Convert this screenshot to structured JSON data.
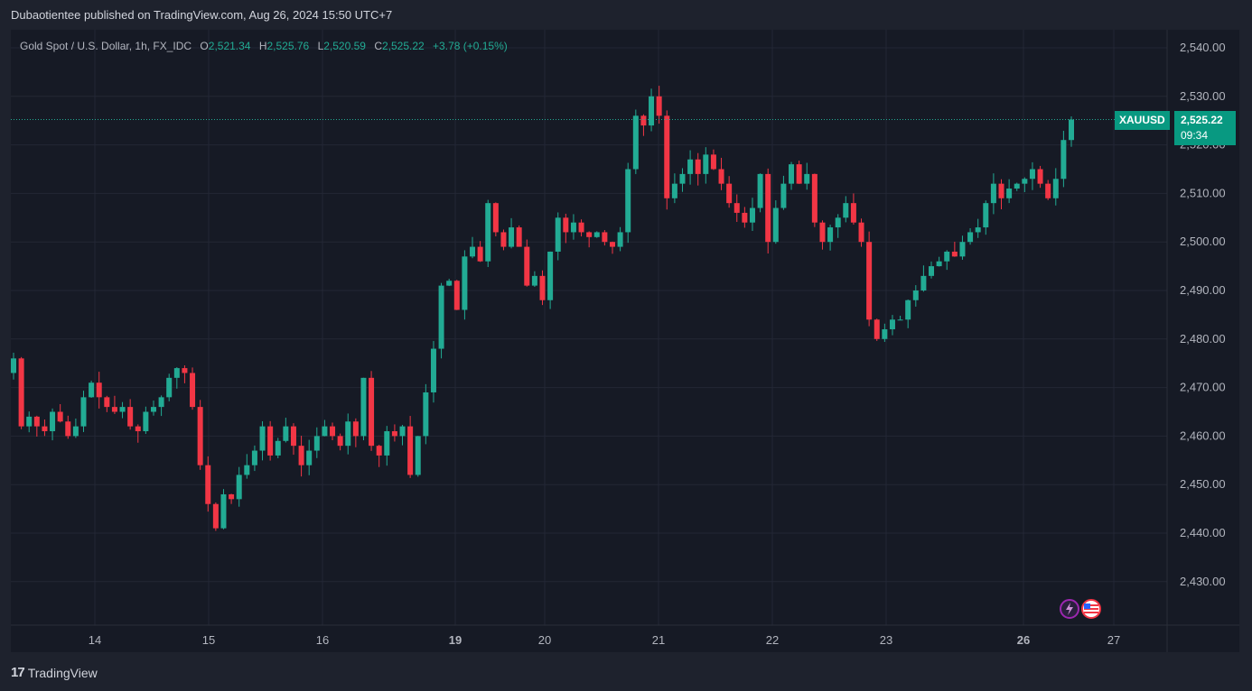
{
  "header": {
    "published_text": "Dubaotientee published on TradingView.com, Aug 26, 2024 15:50 UTC+7"
  },
  "legend": {
    "symbol": "Gold Spot / U.S. Dollar, 1h, FX_IDC",
    "o_key": "O",
    "o": "2,521.34",
    "h_key": "H",
    "h": "2,525.76",
    "l_key": "L",
    "l": "2,520.59",
    "c_key": "C",
    "c": "2,525.22",
    "change": "+3.78 (+0.15%)"
  },
  "price_tag": {
    "ticker": "XAUUSD",
    "price": "2,525.22",
    "countdown": "09:34"
  },
  "footer": {
    "brand": "TradingView"
  },
  "colors": {
    "up": "#22ab94",
    "down": "#f23645",
    "background": "#161a25",
    "grid": "#232735",
    "axis_text": "#b2b5be"
  },
  "chart_data": {
    "type": "candlestick",
    "y_ticks": [
      "2,540.00",
      "2,530.00",
      "2,520.00",
      "2,510.00",
      "2,500.00",
      "2,490.00",
      "2,480.00",
      "2,470.00",
      "2,460.00",
      "2,450.00",
      "2,440.00",
      "2,430.00"
    ],
    "y_tick_values": [
      2540,
      2530,
      2520,
      2510,
      2500,
      2490,
      2480,
      2470,
      2460,
      2450,
      2440,
      2430
    ],
    "x_ticks": [
      {
        "label": "14",
        "bold": false
      },
      {
        "label": "15",
        "bold": false
      },
      {
        "label": "16",
        "bold": false
      },
      {
        "label": "19",
        "bold": true
      },
      {
        "label": "20",
        "bold": false
      },
      {
        "label": "21",
        "bold": false
      },
      {
        "label": "22",
        "bold": false
      },
      {
        "label": "23",
        "bold": false
      },
      {
        "label": "26",
        "bold": true
      },
      {
        "label": "27",
        "bold": false
      }
    ],
    "last_price": 2525.22,
    "close_path": [
      2476,
      2462,
      2464,
      2462,
      2461,
      2465,
      2463,
      2460,
      2462,
      2468,
      2471,
      2468,
      2466,
      2465,
      2466,
      2462,
      2461,
      2465,
      2466,
      2468,
      2472,
      2474,
      2473,
      2466,
      2454,
      2446,
      2441,
      2448,
      2447,
      2452,
      2454,
      2457,
      2462,
      2456,
      2459,
      2462,
      2458,
      2454,
      2457,
      2460,
      2462,
      2460,
      2458,
      2463,
      2460,
      2472,
      2458,
      2456,
      2461,
      2460,
      2462,
      2452,
      2460,
      2469,
      2478,
      2491,
      2492,
      2486,
      2497,
      2499,
      2496,
      2508,
      2502,
      2499,
      2503,
      2499,
      2491,
      2493,
      2488,
      2498,
      2505,
      2502,
      2504,
      2502,
      2501,
      2502,
      2500,
      2499,
      2502,
      2515,
      2526,
      2524,
      2530,
      2526,
      2509,
      2512,
      2514,
      2517,
      2514,
      2518,
      2515,
      2512,
      2508,
      2506,
      2504,
      2507,
      2514,
      2500,
      2507,
      2512,
      2516,
      2512,
      2514,
      2504,
      2500,
      2503,
      2505,
      2508,
      2504,
      2500,
      2484,
      2480,
      2482,
      2484,
      2484,
      2488,
      2490,
      2493,
      2495,
      2496,
      2498,
      2497,
      2500,
      2502,
      2503,
      2508,
      2512,
      2509,
      2511,
      2512,
      2513,
      2515,
      2512,
      2509,
      2513,
      2521,
      2525.22
    ]
  }
}
